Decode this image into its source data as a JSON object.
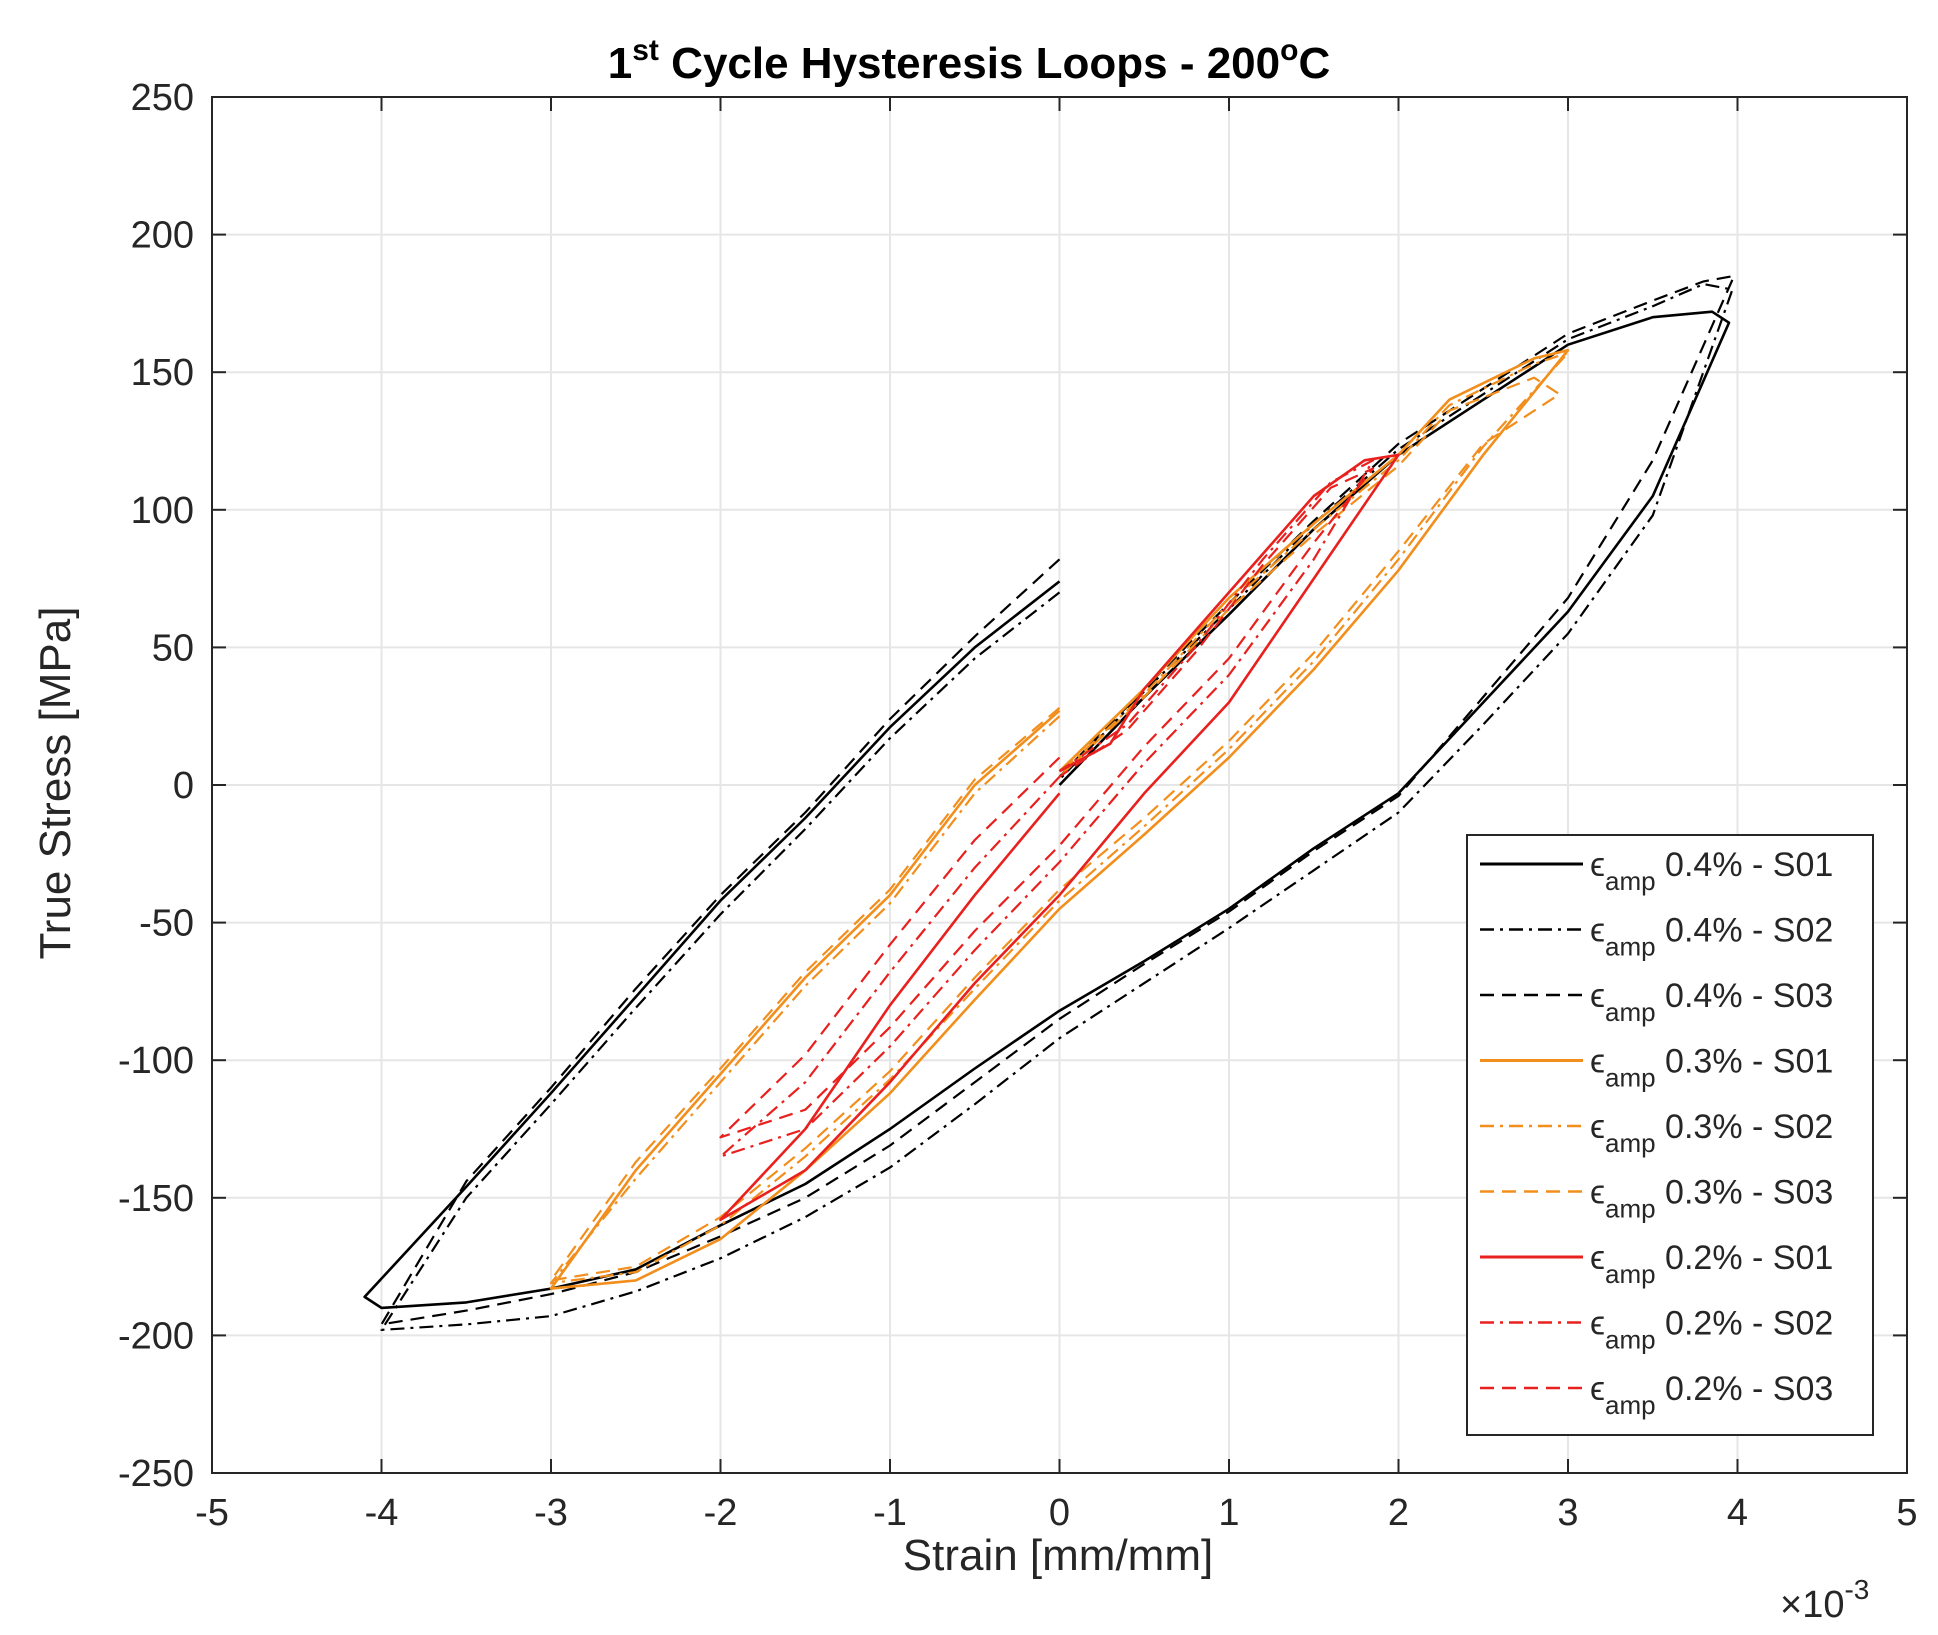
{
  "chart_data": {
    "type": "line",
    "title": {
      "prefix": "1",
      "sup": "st",
      "main": " Cycle Hysteresis Loops - 200",
      "deg": "o",
      "unit": "C"
    },
    "xlabel": "Strain [mm/mm]",
    "ylabel": "True Stress [MPa]",
    "x_exponent": {
      "base": "×10",
      "exp": "-3"
    },
    "xlim": [
      -5,
      5
    ],
    "ylim": [
      -250,
      250
    ],
    "xticks": [
      -5,
      -4,
      -3,
      -2,
      -1,
      0,
      1,
      2,
      3,
      4,
      5
    ],
    "yticks": [
      -250,
      -200,
      -150,
      -100,
      -50,
      0,
      50,
      100,
      150,
      200,
      250
    ],
    "grid": true,
    "legend_position": "bottom-right",
    "series": [
      {
        "symbol": "ϵ",
        "sub": "amp",
        "name": " 0.4% - S01",
        "color": "#000000",
        "dash": "solid",
        "points": [
          [
            0,
            74
          ],
          [
            -0.5,
            50
          ],
          [
            -1,
            21
          ],
          [
            -1.5,
            -12
          ],
          [
            -2,
            -42
          ],
          [
            -2.5,
            -77
          ],
          [
            -3,
            -112
          ],
          [
            -3.5,
            -146
          ],
          [
            -4.1,
            -186
          ],
          [
            -4,
            -190
          ],
          [
            -3.5,
            -188
          ],
          [
            -3,
            -183
          ],
          [
            -2.5,
            -176
          ],
          [
            -2,
            -160
          ],
          [
            -1.5,
            -145
          ],
          [
            -1,
            -125
          ],
          [
            -0.5,
            -103
          ],
          [
            0,
            -82
          ],
          [
            0.5,
            -64
          ],
          [
            1,
            -45
          ],
          [
            1.5,
            -23
          ],
          [
            2,
            -3
          ],
          [
            2.5,
            30
          ],
          [
            3,
            63
          ],
          [
            3.5,
            105
          ],
          [
            3.95,
            168
          ],
          [
            3.85,
            172
          ],
          [
            3.5,
            170
          ],
          [
            3,
            160
          ],
          [
            2.5,
            140
          ],
          [
            2,
            120
          ],
          [
            1.5,
            93
          ],
          [
            1,
            62
          ],
          [
            0.5,
            32
          ],
          [
            0,
            0
          ]
        ]
      },
      {
        "symbol": "ϵ",
        "sub": "amp",
        "name": " 0.4% - S02",
        "color": "#000000",
        "dash": "dashdot",
        "points": [
          [
            0,
            70
          ],
          [
            -0.5,
            46
          ],
          [
            -1,
            17
          ],
          [
            -1.5,
            -16
          ],
          [
            -2,
            -47
          ],
          [
            -2.5,
            -81
          ],
          [
            -3,
            -116
          ],
          [
            -3.5,
            -150
          ],
          [
            -4,
            -198
          ],
          [
            -3.5,
            -196
          ],
          [
            -3,
            -193
          ],
          [
            -2.5,
            -184
          ],
          [
            -2,
            -172
          ],
          [
            -1.5,
            -157
          ],
          [
            -1,
            -139
          ],
          [
            -0.5,
            -116
          ],
          [
            0,
            -92
          ],
          [
            0.5,
            -72
          ],
          [
            1,
            -52
          ],
          [
            1.5,
            -31
          ],
          [
            2,
            -10
          ],
          [
            2.5,
            22
          ],
          [
            3,
            55
          ],
          [
            3.5,
            98
          ],
          [
            3.97,
            180
          ],
          [
            3.8,
            182
          ],
          [
            3.5,
            174
          ],
          [
            3,
            162
          ],
          [
            2.5,
            142
          ],
          [
            2,
            122
          ],
          [
            1.5,
            95
          ],
          [
            1,
            64
          ],
          [
            0.5,
            34
          ],
          [
            0,
            2
          ]
        ]
      },
      {
        "symbol": "ϵ",
        "sub": "amp",
        "name": " 0.4% - S03",
        "color": "#000000",
        "dash": "dashed",
        "points": [
          [
            0,
            82
          ],
          [
            -0.5,
            54
          ],
          [
            -1,
            24
          ],
          [
            -1.5,
            -10
          ],
          [
            -2,
            -40
          ],
          [
            -2.5,
            -74
          ],
          [
            -3,
            -110
          ],
          [
            -3.5,
            -144
          ],
          [
            -4,
            -196
          ],
          [
            -3.5,
            -191
          ],
          [
            -3,
            -185
          ],
          [
            -2.5,
            -177
          ],
          [
            -2,
            -164
          ],
          [
            -1.5,
            -150
          ],
          [
            -1,
            -131
          ],
          [
            -0.5,
            -108
          ],
          [
            0,
            -85
          ],
          [
            0.5,
            -65
          ],
          [
            1,
            -46
          ],
          [
            1.5,
            -24
          ],
          [
            2,
            -4
          ],
          [
            2.5,
            32
          ],
          [
            3,
            68
          ],
          [
            3.5,
            118
          ],
          [
            3.98,
            185
          ],
          [
            3.8,
            183
          ],
          [
            3.5,
            176
          ],
          [
            3,
            164
          ],
          [
            2.5,
            144
          ],
          [
            2,
            124
          ],
          [
            1.5,
            96
          ],
          [
            1,
            66
          ],
          [
            0.5,
            35
          ],
          [
            0,
            3
          ]
        ]
      },
      {
        "symbol": "ϵ",
        "sub": "amp",
        "name": " 0.3% - S01",
        "color": "#f28e1c",
        "dash": "solid",
        "points": [
          [
            0,
            27
          ],
          [
            -0.5,
            0
          ],
          [
            -1,
            -40
          ],
          [
            -1.5,
            -70
          ],
          [
            -2,
            -105
          ],
          [
            -2.5,
            -140
          ],
          [
            -3,
            -183
          ],
          [
            -2.5,
            -180
          ],
          [
            -2,
            -165
          ],
          [
            -1.5,
            -140
          ],
          [
            -1,
            -112
          ],
          [
            -0.5,
            -78
          ],
          [
            0,
            -45
          ],
          [
            0.5,
            -18
          ],
          [
            1,
            10
          ],
          [
            1.5,
            42
          ],
          [
            2,
            78
          ],
          [
            2.5,
            120
          ],
          [
            3,
            158
          ],
          [
            2.8,
            155
          ],
          [
            2.3,
            140
          ],
          [
            2,
            120
          ],
          [
            1.5,
            95
          ],
          [
            1,
            68
          ],
          [
            0.5,
            35
          ],
          [
            0,
            5
          ]
        ]
      },
      {
        "symbol": "ϵ",
        "sub": "amp",
        "name": " 0.3% - S02",
        "color": "#f28e1c",
        "dash": "dashdot",
        "points": [
          [
            0,
            25
          ],
          [
            -0.5,
            -3
          ],
          [
            -1,
            -43
          ],
          [
            -1.5,
            -73
          ],
          [
            -2,
            -108
          ],
          [
            -2.5,
            -143
          ],
          [
            -3,
            -181
          ],
          [
            -2.5,
            -177
          ],
          [
            -2,
            -160
          ],
          [
            -1.5,
            -135
          ],
          [
            -1,
            -107
          ],
          [
            -0.5,
            -74
          ],
          [
            0,
            -42
          ],
          [
            0.5,
            -15
          ],
          [
            1,
            13
          ],
          [
            1.5,
            45
          ],
          [
            2,
            82
          ],
          [
            2.5,
            123
          ],
          [
            3,
            157
          ],
          [
            2.8,
            153
          ],
          [
            2.3,
            138
          ],
          [
            2,
            118
          ],
          [
            1.5,
            93
          ],
          [
            1,
            66
          ],
          [
            0.5,
            33
          ],
          [
            0,
            4
          ]
        ]
      },
      {
        "symbol": "ϵ",
        "sub": "amp",
        "name": " 0.3% - S03",
        "color": "#f28e1c",
        "dash": "dashed",
        "points": [
          [
            0,
            28
          ],
          [
            -0.5,
            2
          ],
          [
            -1,
            -38
          ],
          [
            -1.5,
            -68
          ],
          [
            -2,
            -103
          ],
          [
            -2.5,
            -137
          ],
          [
            -3,
            -180
          ],
          [
            -2.5,
            -175
          ],
          [
            -2,
            -157
          ],
          [
            -1.5,
            -132
          ],
          [
            -1,
            -104
          ],
          [
            -0.5,
            -70
          ],
          [
            0,
            -38
          ],
          [
            0.5,
            -12
          ],
          [
            1,
            16
          ],
          [
            1.5,
            48
          ],
          [
            2,
            85
          ],
          [
            2.5,
            124
          ],
          [
            2.95,
            142
          ],
          [
            2.8,
            148
          ],
          [
            2.3,
            136
          ],
          [
            2,
            116
          ],
          [
            1.5,
            91
          ],
          [
            1,
            64
          ],
          [
            0.5,
            32
          ],
          [
            0,
            3
          ]
        ]
      },
      {
        "symbol": "ϵ",
        "sub": "amp",
        "name": " 0.2% - S01",
        "color": "#e8201e",
        "dash": "solid",
        "points": [
          [
            0,
            -3
          ],
          [
            -0.5,
            -40
          ],
          [
            -1,
            -80
          ],
          [
            -1.5,
            -125
          ],
          [
            -2,
            -158
          ],
          [
            -1.5,
            -140
          ],
          [
            -1,
            -108
          ],
          [
            -0.5,
            -72
          ],
          [
            0,
            -40
          ],
          [
            0.5,
            -3
          ],
          [
            1,
            30
          ],
          [
            1.5,
            75
          ],
          [
            2,
            120
          ],
          [
            1.8,
            118
          ],
          [
            1.5,
            105
          ],
          [
            1,
            70
          ],
          [
            0.5,
            35
          ],
          [
            0.3,
            15
          ],
          [
            0,
            5
          ]
        ]
      },
      {
        "symbol": "ϵ",
        "sub": "amp",
        "name": " 0.2% - S02",
        "color": "#e8201e",
        "dash": "dashdot",
        "points": [
          [
            0,
            3
          ],
          [
            -0.5,
            -30
          ],
          [
            -1,
            -68
          ],
          [
            -1.5,
            -108
          ],
          [
            -2,
            -135
          ],
          [
            -1.5,
            -125
          ],
          [
            -1,
            -95
          ],
          [
            -0.5,
            -60
          ],
          [
            0,
            -28
          ],
          [
            0.5,
            8
          ],
          [
            1,
            40
          ],
          [
            1.5,
            82
          ],
          [
            1.85,
            118
          ],
          [
            1.6,
            110
          ],
          [
            1.2,
            82
          ],
          [
            0.8,
            50
          ],
          [
            0.4,
            22
          ],
          [
            0,
            5
          ]
        ]
      },
      {
        "symbol": "ϵ",
        "sub": "amp",
        "name": " 0.2% - S03",
        "color": "#e8201e",
        "dash": "dashed",
        "points": [
          [
            0,
            10
          ],
          [
            -0.5,
            -20
          ],
          [
            -1,
            -58
          ],
          [
            -1.5,
            -98
          ],
          [
            -2,
            -128
          ],
          [
            -1.5,
            -118
          ],
          [
            -1,
            -88
          ],
          [
            -0.5,
            -53
          ],
          [
            0,
            -22
          ],
          [
            0.5,
            14
          ],
          [
            1,
            46
          ],
          [
            1.5,
            88
          ],
          [
            1.85,
            115
          ],
          [
            1.6,
            108
          ],
          [
            1.2,
            80
          ],
          [
            0.8,
            48
          ],
          [
            0.4,
            20
          ],
          [
            0,
            3
          ]
        ]
      }
    ]
  }
}
